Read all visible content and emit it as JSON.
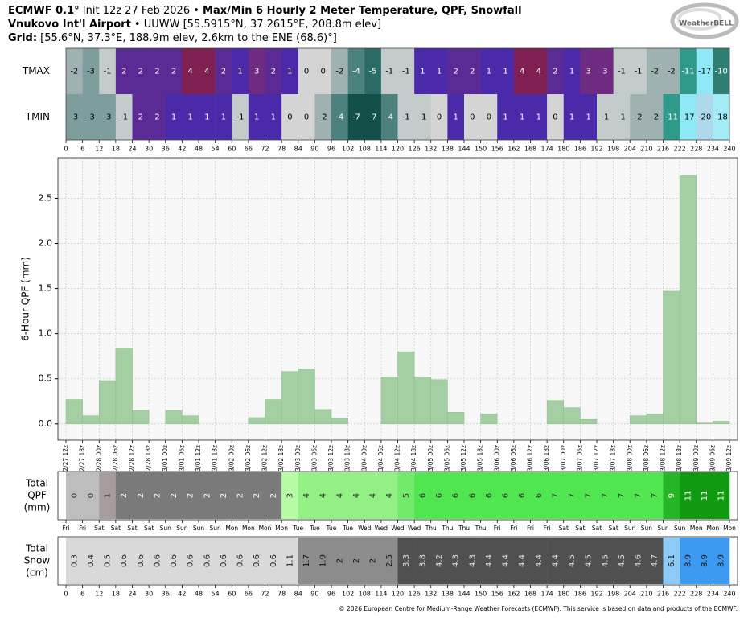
{
  "header": {
    "line1": [
      "ECMWF 0.1°",
      " Init 12z 27 Feb 2026 • ",
      "Max/Min 6 Hourly 2 Meter Temperature, QPF, Snowfall"
    ],
    "line2": [
      "Vnukovo Int'l Airport",
      " • UUWW [55.5915°N, 37.2615°E, 208.8m elev]"
    ],
    "line3": [
      "Grid:",
      " [55.6°N, 37.3°E, 188.9m elev, 2.6km to the ENE (68.6)°]"
    ],
    "logo": "WeatherBELL"
  },
  "footer": "© 2026 European Centre for Medium-Range Weather Forecasts (ECMWF). This service is based on data and products of the ECMWF.",
  "chart_data": [
    {
      "type": "heatmap",
      "xlim": [
        0,
        240
      ],
      "xticks": [
        0,
        6,
        12,
        18,
        24,
        30,
        36,
        42,
        48,
        54,
        60,
        66,
        72,
        78,
        84,
        90,
        96,
        102,
        108,
        114,
        120,
        126,
        132,
        138,
        144,
        150,
        156,
        162,
        168,
        174,
        180,
        186,
        192,
        198,
        204,
        210,
        216,
        222,
        228,
        234,
        240
      ],
      "series": [
        {
          "name": "TMAX",
          "values": [
            -2,
            -3,
            -1,
            2,
            2,
            2,
            2,
            4,
            4,
            2,
            1,
            3,
            2,
            1,
            0,
            0,
            -2,
            -4,
            -5,
            -1,
            -1,
            1,
            1,
            2,
            2,
            1,
            1,
            4,
            4,
            2,
            1,
            3,
            3,
            -1,
            -1,
            -2,
            -2,
            -11,
            -17,
            -10
          ]
        },
        {
          "name": "TMIN",
          "values": [
            -3,
            -3,
            -3,
            -1,
            2,
            2,
            1,
            1,
            1,
            1,
            -1,
            1,
            1,
            0,
            0,
            -2,
            -4,
            -7,
            -7,
            -4,
            -1,
            -1,
            0,
            1,
            0,
            0,
            1,
            1,
            1,
            0,
            1,
            1,
            -1,
            -1,
            -2,
            -2,
            -11,
            -17,
            -20,
            -18
          ]
        }
      ]
    },
    {
      "type": "histogram",
      "ylabel": "6-Hour QPF (mm)",
      "color": "#a3cfa3",
      "grid": true,
      "ylim": [
        -0.18,
        2.95
      ],
      "yticks": [
        {
          "value": 0,
          "label": "0.0"
        },
        0.5,
        {
          "value": 1,
          "label": "1.0"
        },
        1.5,
        {
          "value": 2,
          "label": "2.0"
        },
        2.5
      ],
      "bins": [
        "02/27 12z",
        "02/27 18z",
        "02/28 00z",
        "02/28 06z",
        "02/28 12z",
        "02/28 18z",
        "03/01 00z",
        "03/01 06z",
        "03/01 12z",
        "03/01 18z",
        "03/02 00z",
        "03/02 06z",
        "03/02 12z",
        "03/02 18z",
        "03/03 00z",
        "03/03 06z",
        "03/03 12z",
        "03/03 18z",
        "03/04 00z",
        "03/04 06z",
        "03/04 12z",
        "03/04 18z",
        "03/05 00z",
        "03/05 06z",
        "03/05 12z",
        "03/05 18z",
        "03/06 00z",
        "03/06 06z",
        "03/06 12z",
        "03/06 18z",
        "03/07 00z",
        "03/07 06z",
        "03/07 12z",
        "03/07 18z",
        "03/08 00z",
        "03/08 06z",
        "03/08 12z",
        "03/08 18z",
        "03/09 00z",
        "03/09 06z",
        "03/09 12z"
      ],
      "values": [
        0.27,
        0.09,
        0.48,
        0.84,
        0.15,
        0,
        0.15,
        0.09,
        0,
        0,
        0,
        0.07,
        0.27,
        0.58,
        0.61,
        0.16,
        0.06,
        0,
        0,
        0.52,
        0.8,
        0.52,
        0.49,
        0.13,
        0,
        0.11,
        0,
        0,
        0,
        0.26,
        0.18,
        0.05,
        0,
        0,
        0.09,
        0.11,
        1.47,
        2.75,
        0.01,
        0.03
      ]
    },
    {
      "type": "strip",
      "ylabel": [
        "Total",
        "QPF",
        "(mm)"
      ],
      "bins": [
        "Fri",
        "Fri",
        "Sat",
        "Sat",
        "Sat",
        "Sat",
        "Sun",
        "Sun",
        "Sun",
        "Sun",
        "Mon",
        "Mon",
        "Mon",
        "Mon",
        "Tue",
        "Tue",
        "Tue",
        "Tue",
        "Wed",
        "Wed",
        "Wed",
        "Wed",
        "Thu",
        "Thu",
        "Thu",
        "Thu",
        "Fri",
        "Fri",
        "Fri",
        "Fri",
        "Sat",
        "Sat",
        "Sat",
        "Sat",
        "Sun",
        "Sun",
        "Sun",
        "Sun",
        "Mon",
        "Mon",
        "Mon"
      ],
      "values": [
        0,
        0,
        1,
        2,
        2,
        2,
        2,
        2,
        2,
        2,
        2,
        2,
        2,
        3,
        4,
        4,
        4,
        4,
        4,
        4,
        5,
        6,
        6,
        6,
        6,
        6,
        6,
        6,
        6,
        7,
        7,
        7,
        7,
        7,
        7,
        7,
        9,
        11,
        11,
        11
      ]
    },
    {
      "type": "strip",
      "ylabel": [
        "Total",
        "Snow",
        "(cm)"
      ],
      "xlim": [
        0,
        240
      ],
      "xticks": [
        0,
        6,
        12,
        18,
        24,
        30,
        36,
        42,
        48,
        54,
        60,
        66,
        72,
        78,
        84,
        90,
        96,
        102,
        108,
        114,
        120,
        126,
        132,
        138,
        144,
        150,
        156,
        162,
        168,
        174,
        180,
        186,
        192,
        198,
        204,
        210,
        216,
        222,
        228,
        234,
        240
      ],
      "values": [
        0.3,
        0.4,
        0.5,
        0.6,
        0.6,
        0.6,
        0.6,
        0.6,
        0.6,
        0.6,
        0.6,
        0.6,
        0.6,
        1.1,
        1.7,
        1.9,
        2,
        2,
        2,
        2.5,
        3.3,
        3.8,
        4.2,
        4.3,
        4.3,
        4.4,
        4.4,
        4.4,
        4.4,
        4.4,
        4.5,
        4.5,
        4.5,
        4.5,
        4.6,
        4.7,
        6.1,
        8.9,
        8.9,
        8.9
      ]
    }
  ]
}
